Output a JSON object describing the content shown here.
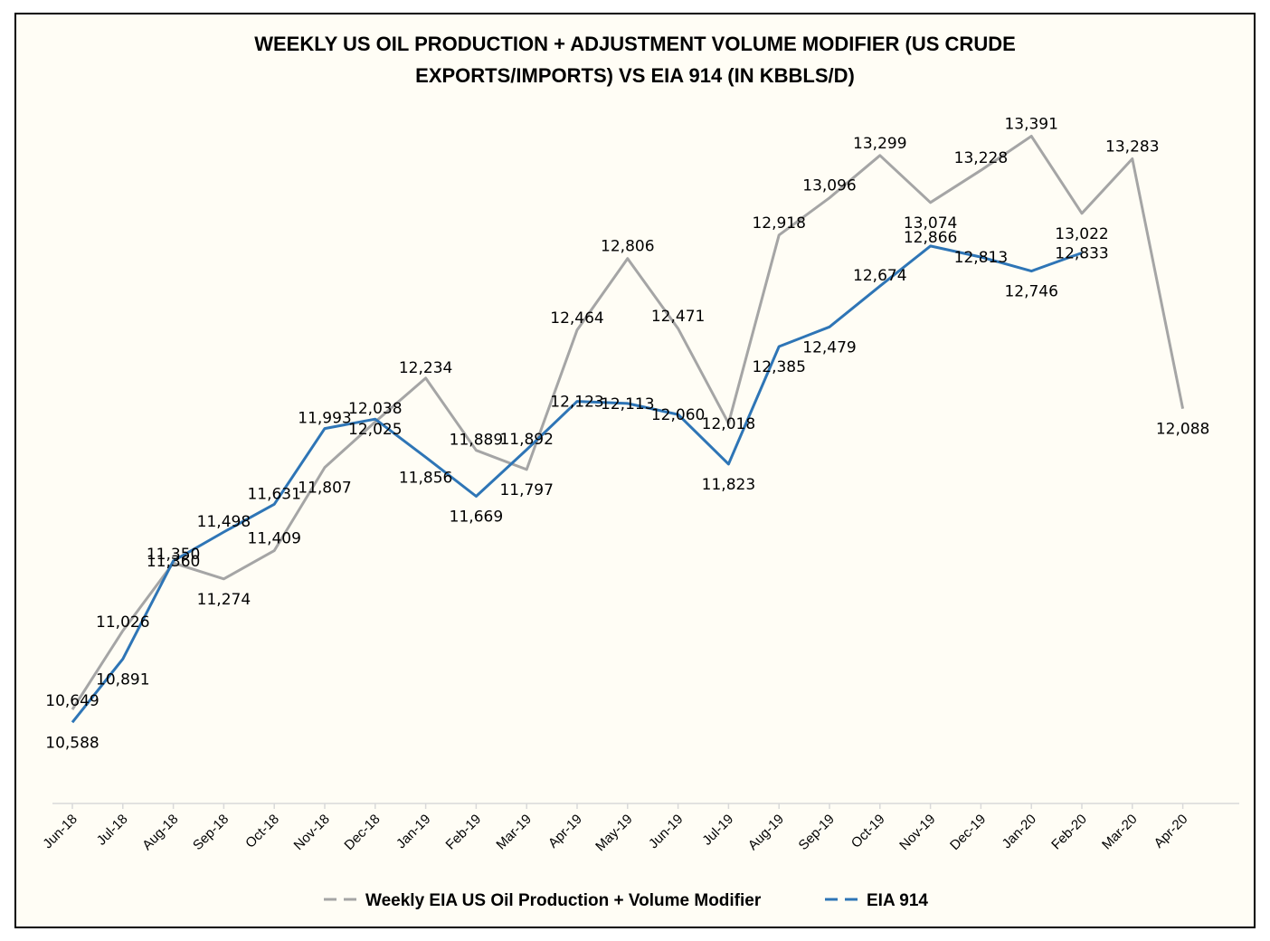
{
  "chart_data": {
    "type": "line",
    "title_line1": "WEEKLY US OIL PRODUCTION + ADJUSTMENT VOLUME MODIFIER (US CRUDE",
    "title_line2": "EXPORTS/IMPORTS) VS EIA 914 (IN KBBLS/D)",
    "xlabel": "",
    "ylabel": "",
    "categories": [
      "Jun-18",
      "Jul-18",
      "Aug-18",
      "Sep-18",
      "Oct-18",
      "Nov-18",
      "Dec-18",
      "Jan-19",
      "Feb-19",
      "Mar-19",
      "Apr-19",
      "May-19",
      "Jun-19",
      "Jul-19",
      "Aug-19",
      "Sep-19",
      "Oct-19",
      "Nov-19",
      "Dec-19",
      "Jan-20",
      "Feb-20",
      "Mar-20",
      "Apr-20"
    ],
    "ylim": [
      10200,
      13800
    ],
    "grid": false,
    "legend_position": "bottom",
    "series": [
      {
        "name": "Weekly EIA US Oil Production + Volume Modifier",
        "color": "#a5a5a5",
        "values": [
          10649,
          11026,
          11350,
          11274,
          11409,
          11807,
          12025,
          12234,
          11889,
          11797,
          12464,
          12806,
          12471,
          12018,
          12918,
          13096,
          13299,
          13074,
          13228,
          13391,
          13022,
          13283,
          12088
        ],
        "labels": [
          "10,649",
          "11,026",
          "11,350",
          "11,274",
          "11,409",
          "11,807",
          "12,025",
          "12,234",
          "11,889",
          "11,797",
          "12,464",
          "12,806",
          "12,471",
          "12,018",
          "12,918",
          "13,096",
          "13,299",
          "13,074",
          "13,228",
          "13,391",
          "13,022",
          "13,283",
          "12,088"
        ]
      },
      {
        "name": "EIA 914",
        "color": "#2e75b6",
        "values": [
          10588,
          10891,
          11360,
          11498,
          11631,
          11993,
          12038,
          11856,
          11669,
          11892,
          12123,
          12113,
          12060,
          11823,
          12385,
          12479,
          12674,
          12866,
          12813,
          12746,
          12833,
          null,
          null
        ],
        "labels": [
          "10,588",
          "10,891",
          "11,360",
          "11,498",
          "11,631",
          "11,993",
          "12,038",
          "11,856",
          "11,669",
          "11,892",
          "12,123",
          "12,113",
          "12,060",
          "11,823",
          "12,385",
          "12,479",
          "12,674",
          "12,866",
          "12,813",
          "12,746",
          "12,833",
          "",
          ""
        ]
      }
    ]
  }
}
